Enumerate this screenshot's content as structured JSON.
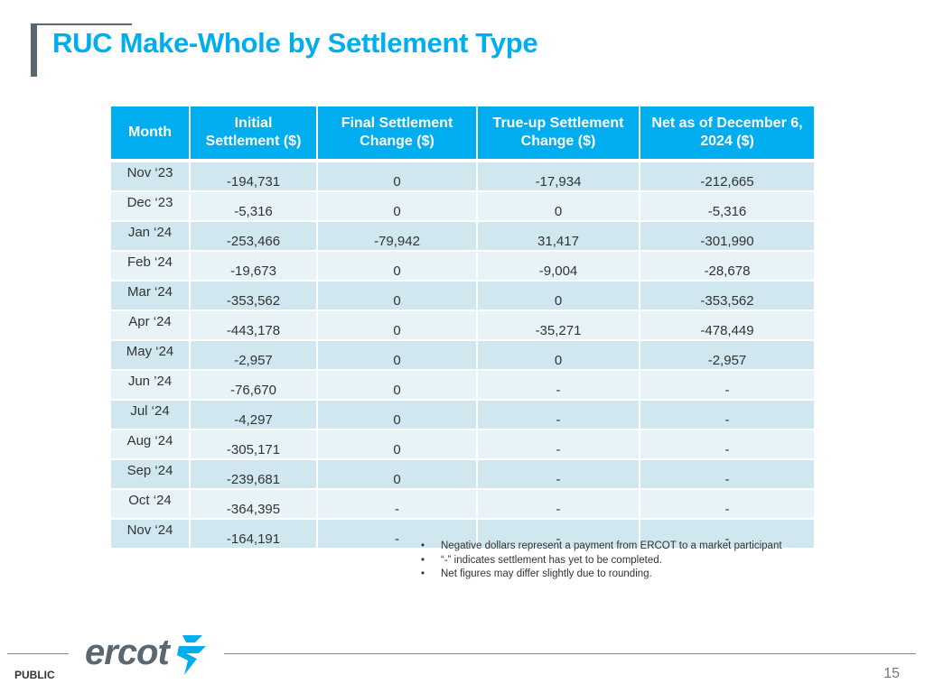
{
  "slide": {
    "title": "RUC Make-Whole by Settlement Type",
    "footer_label": "PUBLIC",
    "page_number": "15",
    "logo_text": "ercot",
    "accent_color": "#00aeef",
    "header_color": "#00aeef",
    "row_color_dark": "#d0e7f0",
    "row_color_light": "#e8f3f7"
  },
  "table": {
    "headers": {
      "month": "Month",
      "initial": "Initial Settlement ($)",
      "final": "Final Settlement Change ($)",
      "trueup": "True-up Settlement Change ($)",
      "net": "Net as of December 6, 2024 ($)"
    },
    "rows": [
      {
        "month": "Nov ‘23",
        "initial": "-194,731",
        "final": "0",
        "trueup": "-17,934",
        "net": "-212,665"
      },
      {
        "month": "Dec ‘23",
        "initial": "-5,316",
        "final": "0",
        "trueup": "0",
        "net": "-5,316"
      },
      {
        "month": "Jan ‘24",
        "initial": "-253,466",
        "final": "-79,942",
        "trueup": "31,417",
        "net": "-301,990"
      },
      {
        "month": "Feb ‘24",
        "initial": "-19,673",
        "final": "0",
        "trueup": "-9,004",
        "net": "-28,678"
      },
      {
        "month": "Mar ‘24",
        "initial": "-353,562",
        "final": "0",
        "trueup": "0",
        "net": "-353,562"
      },
      {
        "month": "Apr ‘24",
        "initial": "-443,178",
        "final": "0",
        "trueup": "-35,271",
        "net": "-478,449"
      },
      {
        "month": "May ‘24",
        "initial": "-2,957",
        "final": "0",
        "trueup": "0",
        "net": "-2,957"
      },
      {
        "month": "Jun ’24",
        "initial": "-76,670",
        "final": "0",
        "trueup": "-",
        "net": "-"
      },
      {
        "month": "Jul ‘24",
        "initial": "-4,297",
        "final": "0",
        "trueup": "-",
        "net": "-"
      },
      {
        "month": "Aug ‘24",
        "initial": "-305,171",
        "final": "0",
        "trueup": "-",
        "net": "-"
      },
      {
        "month": "Sep ‘24",
        "initial": "-239,681",
        "final": "0",
        "trueup": "-",
        "net": "-"
      },
      {
        "month": "Oct ‘24",
        "initial": "-364,395",
        "final": "-",
        "trueup": "-",
        "net": "-"
      },
      {
        "month": "Nov ‘24",
        "initial": "-164,191",
        "final": "-",
        "trueup": "-",
        "net": "-"
      }
    ]
  },
  "notes": {
    "bullet": "•",
    "items": [
      "Negative dollars represent a payment from ERCOT to a market participant",
      "“-” indicates settlement has yet to be completed.",
      "Net figures may differ slightly due to rounding."
    ]
  }
}
